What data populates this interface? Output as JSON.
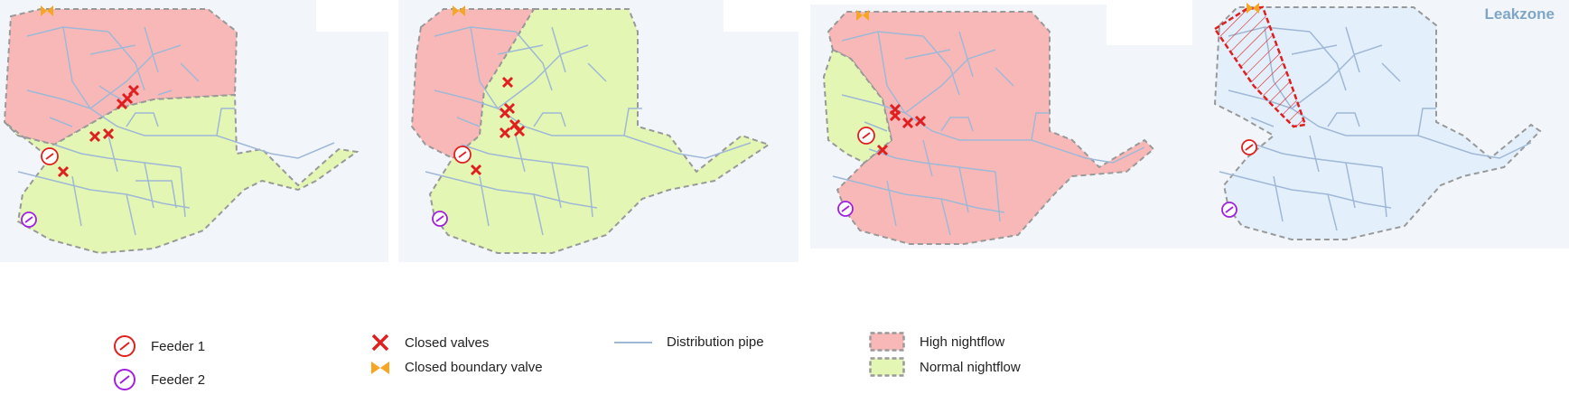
{
  "figure": {
    "panels": [
      {
        "id": "scenario-1",
        "title": ""
      },
      {
        "id": "scenario-2",
        "title": ""
      },
      {
        "id": "scenario-3",
        "title": ""
      },
      {
        "id": "leakzone",
        "title": "Leakzone"
      }
    ],
    "leakzone_title": "Leakzone"
  },
  "legend": {
    "feeder1": "Feeder 1",
    "feeder2": "Feeder 2",
    "closed_valves": "Closed valves",
    "closed_boundary_valve": "Closed boundary valve",
    "distribution_pipe": "Distribution pipe",
    "high_nightflow": "High nightflow",
    "normal_nightflow": "Normal nightflow"
  },
  "colors": {
    "high_nightflow": "#f9b8b8",
    "normal_nightflow": "#e4f6b3",
    "leakzone_fill": "#e3effb",
    "pipe": "#9fb8d6",
    "closed_valve": "#e02020",
    "boundary_valve": "#f5a623",
    "feeder1": "#e02020",
    "feeder2": "#a020e0",
    "background": "#f2f6fb"
  },
  "icons": {
    "closed_valve": "x-mark-icon",
    "boundary_valve": "bowtie-valve-icon",
    "feeder": "feeder-circle-icon"
  }
}
